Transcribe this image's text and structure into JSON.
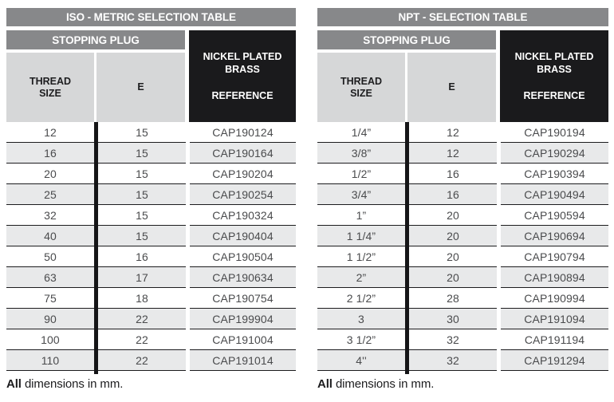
{
  "colors": {
    "bar_gray": "#87888a",
    "header_cell_gray": "#d6d7d8",
    "alt_row_gray": "#e8e9ea",
    "reference_block_black": "#1a1a1c",
    "row_line_black": "#1c1c1e",
    "body_text_gray": "#4a4b4d"
  },
  "tables": [
    {
      "title": "ISO - METRIC SELECTION TABLE",
      "subheader": "STOPPING PLUG",
      "columns": {
        "thread": "THREAD SIZE",
        "e": "E",
        "material": "NICKEL PLATED BRASS",
        "reference": "REFERENCE"
      },
      "rows": [
        {
          "thread": "12",
          "e": "15",
          "ref": "CAP190124"
        },
        {
          "thread": "16",
          "e": "15",
          "ref": "CAP190164"
        },
        {
          "thread": "20",
          "e": "15",
          "ref": "CAP190204"
        },
        {
          "thread": "25",
          "e": "15",
          "ref": "CAP190254"
        },
        {
          "thread": "32",
          "e": "15",
          "ref": "CAP190324"
        },
        {
          "thread": "40",
          "e": "15",
          "ref": "CAP190404"
        },
        {
          "thread": "50",
          "e": "16",
          "ref": "CAP190504"
        },
        {
          "thread": "63",
          "e": "17",
          "ref": "CAP190634"
        },
        {
          "thread": "75",
          "e": "18",
          "ref": "CAP190754"
        },
        {
          "thread": "90",
          "e": "22",
          "ref": "CAP199904"
        },
        {
          "thread": "100",
          "e": "22",
          "ref": "CAP191004"
        },
        {
          "thread": "110",
          "e": "22",
          "ref": "CAP191014"
        }
      ],
      "footer_bold": "All",
      "footer_rest": " dimensions in mm."
    },
    {
      "title": "NPT - SELECTION TABLE",
      "subheader": "STOPPING PLUG",
      "columns": {
        "thread": "THREAD SIZE",
        "e": "E",
        "material": "NICKEL PLATED BRASS",
        "reference": "REFERENCE"
      },
      "rows": [
        {
          "thread": "1/4”",
          "e": "12",
          "ref": "CAP190194"
        },
        {
          "thread": "3/8”",
          "e": "12",
          "ref": "CAP190294"
        },
        {
          "thread": "1/2”",
          "e": "16",
          "ref": "CAP190394"
        },
        {
          "thread": "3/4”",
          "e": "16",
          "ref": "CAP190494"
        },
        {
          "thread": "1”",
          "e": "20",
          "ref": "CAP190594"
        },
        {
          "thread": "1 1/4”",
          "e": "20",
          "ref": "CAP190694"
        },
        {
          "thread": "1 1/2”",
          "e": "20",
          "ref": "CAP190794"
        },
        {
          "thread": "2”",
          "e": "20",
          "ref": "CAP190894"
        },
        {
          "thread": "2 1/2”",
          "e": "28",
          "ref": "CAP190994"
        },
        {
          "thread": "3",
          "e": "30",
          "ref": "CAP191094"
        },
        {
          "thread": "3 1/2”",
          "e": "32",
          "ref": "CAP191194"
        },
        {
          "thread": "4''",
          "e": "32",
          "ref": "CAP191294"
        }
      ],
      "footer_bold": "All",
      "footer_rest": " dimensions in mm."
    }
  ]
}
